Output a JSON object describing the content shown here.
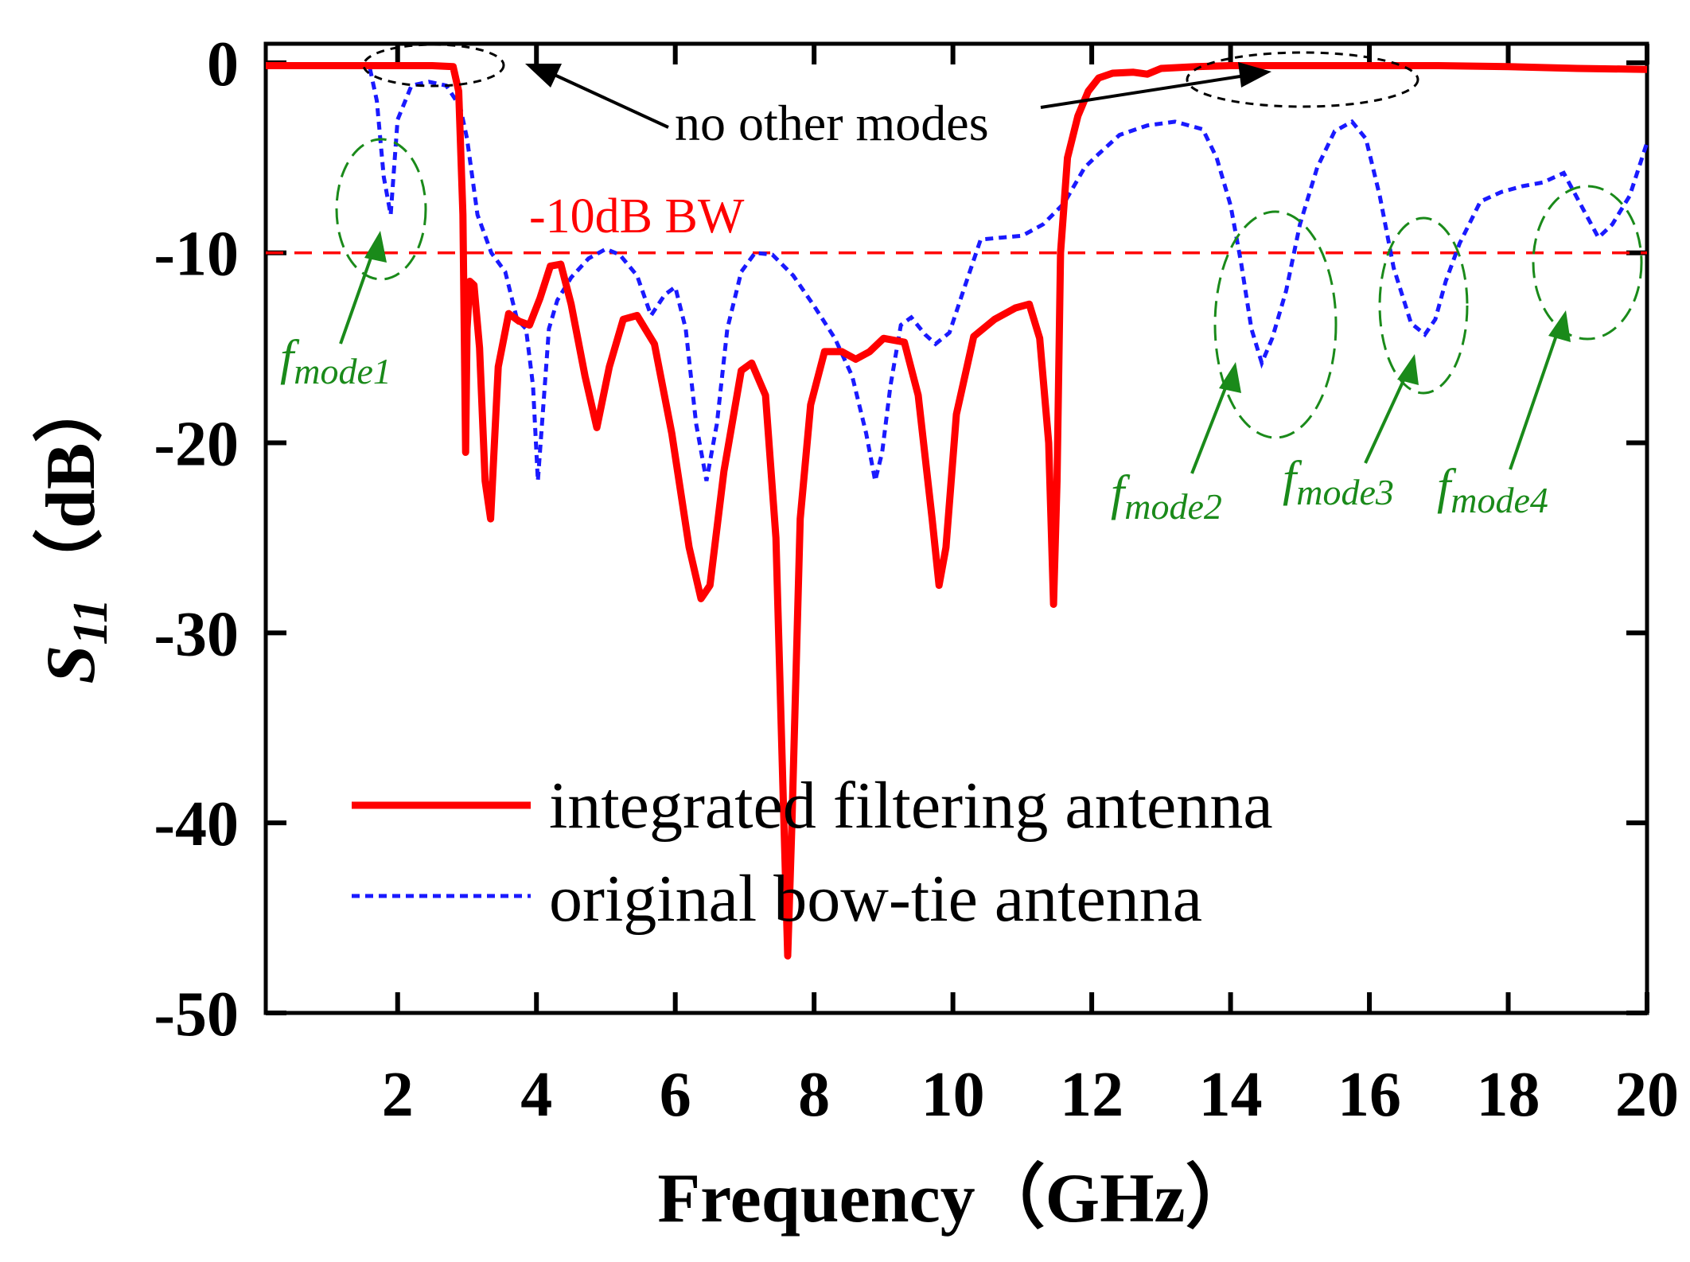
{
  "chart_data": {
    "type": "line",
    "title": "",
    "xlabel": "Frequency（GHz）",
    "ylabel_main": "S",
    "ylabel_sub": "11",
    "ylabel_unit": "（dB）",
    "xlim": [
      0.1,
      20
    ],
    "ylim": [
      -50,
      1
    ],
    "x_ticks": [
      2,
      4,
      6,
      8,
      10,
      12,
      14,
      16,
      18,
      20
    ],
    "y_ticks": [
      0,
      -10,
      -20,
      -30,
      -40,
      -50
    ],
    "x_tick_labels": [
      "2",
      "4",
      "6",
      "8",
      "10",
      "12",
      "14",
      "16",
      "18",
      "20"
    ],
    "y_tick_labels": [
      "0",
      "-10",
      "-20",
      "-30",
      "-40",
      "-50"
    ],
    "colors": {
      "filter": "#ff0000",
      "bowtie": "#1a1aff",
      "reference": "#ff0000",
      "mode": "#1a8a1a",
      "black": "#000000"
    },
    "series": [
      {
        "name": "integrated filtering antenna",
        "style": "solid",
        "x": [
          0.1,
          1.0,
          2.0,
          2.5,
          2.8,
          2.88,
          2.94,
          2.98,
          3.0,
          3.04,
          3.1,
          3.18,
          3.26,
          3.34,
          3.45,
          3.6,
          3.75,
          3.9,
          4.05,
          4.2,
          4.35,
          4.5,
          4.7,
          4.87,
          5.05,
          5.25,
          5.45,
          5.7,
          5.95,
          6.2,
          6.37,
          6.5,
          6.7,
          6.95,
          7.1,
          7.3,
          7.45,
          7.55,
          7.62,
          7.68,
          7.8,
          7.95,
          8.15,
          8.4,
          8.6,
          8.8,
          9.0,
          9.3,
          9.5,
          9.7,
          9.8,
          9.9,
          10.05,
          10.3,
          10.6,
          10.9,
          11.1,
          11.25,
          11.38,
          11.45,
          11.5,
          11.55,
          11.65,
          11.8,
          11.95,
          12.1,
          12.3,
          12.6,
          12.8,
          13.0,
          13.5,
          14.0,
          15.0,
          16.0,
          17.0,
          18.0,
          19.0,
          20.0
        ],
        "y": [
          -0.15,
          -0.15,
          -0.15,
          -0.15,
          -0.2,
          -1.5,
          -8,
          -20.5,
          -14,
          -11.5,
          -11.7,
          -15,
          -22,
          -24,
          -16,
          -13.2,
          -13.6,
          -13.8,
          -12.4,
          -10.7,
          -10.6,
          -12.7,
          -16.5,
          -19.2,
          -16,
          -13.5,
          -13.3,
          -14.8,
          -19.5,
          -25.5,
          -28.2,
          -27.5,
          -21.5,
          -16.2,
          -15.8,
          -17.5,
          -25,
          -38,
          -47,
          -40,
          -24,
          -18,
          -15.2,
          -15.2,
          -15.6,
          -15.2,
          -14.5,
          -14.7,
          -17.5,
          -24,
          -27.5,
          -25.5,
          -18.5,
          -14.4,
          -13.5,
          -12.9,
          -12.7,
          -14.5,
          -20,
          -28.5,
          -22,
          -10,
          -5,
          -2.8,
          -1.5,
          -0.8,
          -0.55,
          -0.5,
          -0.6,
          -0.3,
          -0.2,
          -0.15,
          -0.15,
          -0.15,
          -0.15,
          -0.2,
          -0.3,
          -0.35
        ]
      },
      {
        "name": "original bow-tie antenna",
        "style": "dashed",
        "x": [
          1.6,
          1.7,
          1.8,
          1.9,
          2.0,
          2.2,
          2.45,
          2.7,
          2.9,
          3.0,
          3.15,
          3.35,
          3.55,
          3.72,
          3.85,
          3.95,
          4.02,
          4.08,
          4.18,
          4.3,
          4.5,
          4.75,
          5.0,
          5.2,
          5.45,
          5.65,
          5.85,
          6.0,
          6.15,
          6.3,
          6.45,
          6.6,
          6.75,
          6.95,
          7.15,
          7.4,
          7.7,
          8.0,
          8.3,
          8.55,
          8.75,
          8.88,
          8.98,
          9.1,
          9.25,
          9.4,
          9.6,
          9.75,
          9.95,
          10.15,
          10.4,
          10.7,
          11.0,
          11.3,
          11.6,
          11.9,
          12.1,
          12.4,
          12.8,
          13.2,
          13.6,
          13.8,
          14.0,
          14.15,
          14.3,
          14.45,
          14.6,
          14.8,
          15.0,
          15.25,
          15.5,
          15.75,
          15.95,
          16.15,
          16.35,
          16.6,
          16.8,
          16.95,
          17.1,
          17.3,
          17.6,
          17.9,
          18.2,
          18.5,
          18.8,
          19.05,
          19.3,
          19.5,
          19.75,
          20.0
        ],
        "y": [
          -0.3,
          -2,
          -6,
          -8,
          -3,
          -1.2,
          -1,
          -1.2,
          -2.3,
          -4,
          -8,
          -10,
          -11,
          -13.5,
          -14,
          -17,
          -22,
          -19,
          -14,
          -12.5,
          -11.3,
          -10.3,
          -9.8,
          -10.1,
          -11.2,
          -13.3,
          -12.2,
          -11.8,
          -14,
          -19,
          -22,
          -19,
          -14,
          -11,
          -10,
          -10.1,
          -11.2,
          -12.8,
          -14.5,
          -16.5,
          -19.5,
          -22,
          -20.5,
          -17,
          -13.8,
          -13.4,
          -14.3,
          -14.8,
          -14.2,
          -12,
          -9.3,
          -9.2,
          -9.1,
          -8.5,
          -7.4,
          -5.5,
          -4.8,
          -3.8,
          -3.3,
          -3.1,
          -3.5,
          -5,
          -7.5,
          -10.5,
          -14,
          -15.8,
          -14.5,
          -12,
          -8.5,
          -5.5,
          -3.6,
          -3.1,
          -4,
          -7,
          -10.8,
          -13.7,
          -14.3,
          -13.5,
          -11.5,
          -9.5,
          -7.3,
          -6.8,
          -6.5,
          -6.3,
          -5.8,
          -7.5,
          -9.2,
          -8.5,
          -7,
          -4.2
        ]
      }
    ],
    "reference_line": {
      "y": -10,
      "label": "-10dB BW"
    },
    "legend": {
      "position": "lower-center",
      "entries": [
        "integrated filtering antenna",
        "original bow-tie antenna"
      ]
    },
    "annotations": {
      "no_modes": "no other modes",
      "mode_base": "f",
      "mode_subs": [
        "mode1",
        "mode2",
        "mode3",
        "mode4"
      ]
    }
  }
}
